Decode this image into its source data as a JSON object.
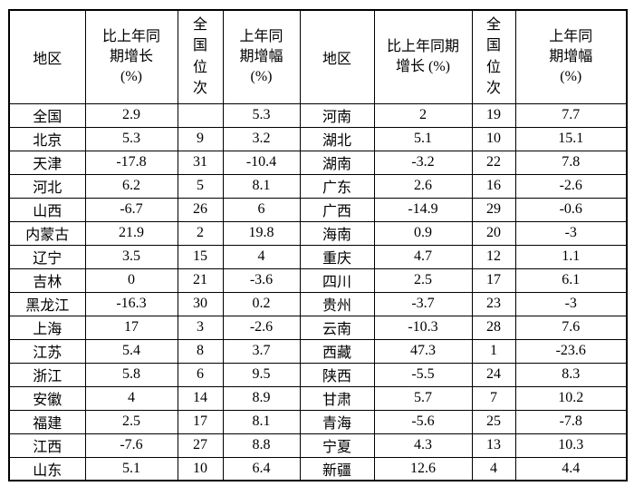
{
  "header": {
    "region": "地区",
    "growth_left_lines": [
      "比上年同",
      "期增长",
      "(%)"
    ],
    "growth_right_lines": [
      "比上年同期",
      "增长 (%)"
    ],
    "rank_chars": [
      "全",
      "国",
      "位",
      "次"
    ],
    "prev_lines": [
      "上年同",
      "期增幅",
      "(%)"
    ]
  },
  "chart_data": {
    "type": "table",
    "columns": [
      "地区",
      "比上年同期增长(%)",
      "全国位次",
      "上年同期增幅(%)",
      "地区",
      "比上年同期增长(%)",
      "全国位次",
      "上年同期增幅(%)"
    ],
    "rows": [
      [
        "全国",
        "2.9",
        "",
        "5.3",
        "河南",
        "2",
        "19",
        "7.7"
      ],
      [
        "北京",
        "5.3",
        "9",
        "3.2",
        "湖北",
        "5.1",
        "10",
        "15.1"
      ],
      [
        "天津",
        "-17.8",
        "31",
        "-10.4",
        "湖南",
        "-3.2",
        "22",
        "7.8"
      ],
      [
        "河北",
        "6.2",
        "5",
        "8.1",
        "广东",
        "2.6",
        "16",
        "-2.6"
      ],
      [
        "山西",
        "-6.7",
        "26",
        "6",
        "广西",
        "-14.9",
        "29",
        "-0.6"
      ],
      [
        "内蒙古",
        "21.9",
        "2",
        "19.8",
        "海南",
        "0.9",
        "20",
        "-3"
      ],
      [
        "辽宁",
        "3.5",
        "15",
        "4",
        "重庆",
        "4.7",
        "12",
        "1.1"
      ],
      [
        "吉林",
        "0",
        "21",
        "-3.6",
        "四川",
        "2.5",
        "17",
        "6.1"
      ],
      [
        "黑龙江",
        "-16.3",
        "30",
        "0.2",
        "贵州",
        "-3.7",
        "23",
        "-3"
      ],
      [
        "上海",
        "17",
        "3",
        "-2.6",
        "云南",
        "-10.3",
        "28",
        "7.6"
      ],
      [
        "江苏",
        "5.4",
        "8",
        "3.7",
        "西藏",
        "47.3",
        "1",
        "-23.6"
      ],
      [
        "浙江",
        "5.8",
        "6",
        "9.5",
        "陕西",
        "-5.5",
        "24",
        "8.3"
      ],
      [
        "安徽",
        "4",
        "14",
        "8.9",
        "甘肃",
        "5.7",
        "7",
        "10.2"
      ],
      [
        "福建",
        "2.5",
        "17",
        "8.1",
        "青海",
        "-5.6",
        "25",
        "-7.8"
      ],
      [
        "江西",
        "-7.6",
        "27",
        "8.8",
        "宁夏",
        "4.3",
        "13",
        "10.3"
      ],
      [
        "山东",
        "5.1",
        "10",
        "6.4",
        "新疆",
        "12.6",
        "4",
        "4.4"
      ]
    ],
    "colors": {
      "border": "#000000",
      "text": "#000000",
      "background": "#ffffff"
    }
  }
}
